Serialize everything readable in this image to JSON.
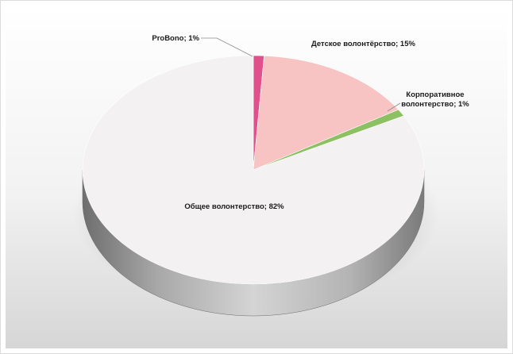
{
  "chart_data": {
    "type": "pie",
    "style": "3d",
    "title": "",
    "legend": "none",
    "slices": [
      {
        "name": "ProBono",
        "value": 1,
        "label": "ProBono; 1%",
        "label_lines": [
          "ProBono; 1%"
        ],
        "color": "#e0508a"
      },
      {
        "name": "Детское волонтёрство",
        "value": 15,
        "label": "Детское волонтёрство; 15%",
        "label_lines": [
          "Детское волонтёрство; 15%"
        ],
        "color": "#f7c3c3"
      },
      {
        "name": "Корпоративное волонтерство",
        "value": 1,
        "label": "Корпоративное волонтерство; 1%",
        "label_lines": [
          "Корпоративное",
          "волонтерство; 1%"
        ],
        "color": "#8cc063"
      },
      {
        "name": "Общее волонтерство",
        "value": 82,
        "label": "Общее волонтерство; 82%",
        "label_lines": [
          "Общее волонтерство; 82%"
        ],
        "color": "#f3f1f1"
      }
    ]
  }
}
